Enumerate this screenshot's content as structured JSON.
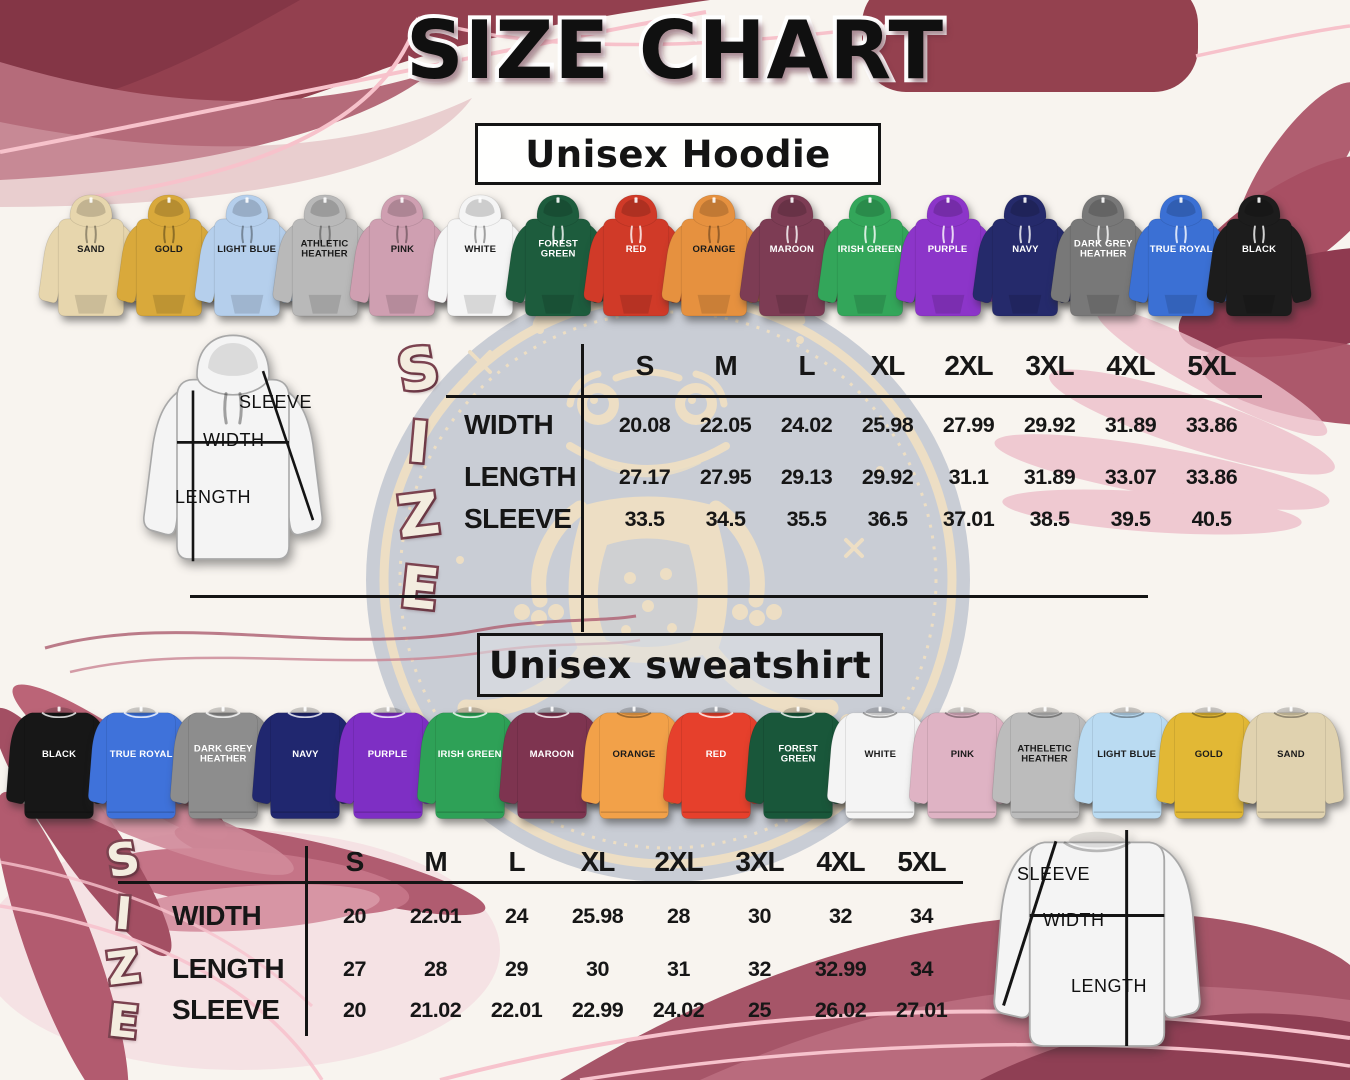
{
  "page_title": "SIZE CHART",
  "size_axis_letters": [
    "S",
    "I",
    "Z",
    "E"
  ],
  "hoodie": {
    "section_label": "Unisex Hoodie",
    "diagram": {
      "sleeve": "SLEEVE",
      "width": "WIDTH",
      "length": "LENGTH"
    },
    "colors": [
      {
        "name": "SAND",
        "hex": "#e7d6ad"
      },
      {
        "name": "GOLD",
        "hex": "#d9a93b"
      },
      {
        "name": "LIGHT BLUE",
        "hex": "#b5cfec"
      },
      {
        "name": "ATHLETIC HEATHER",
        "hex": "#b9b9b9"
      },
      {
        "name": "PINK",
        "hex": "#cf9fb1"
      },
      {
        "name": "WHITE",
        "hex": "#f5f5f5"
      },
      {
        "name": "FOREST GREEN",
        "hex": "#1d5c3d"
      },
      {
        "name": "RED",
        "hex": "#d03a28"
      },
      {
        "name": "ORANGE",
        "hex": "#e6913f"
      },
      {
        "name": "MAROON",
        "hex": "#7d3c54"
      },
      {
        "name": "IRISH GREEN",
        "hex": "#33a65a"
      },
      {
        "name": "PURPLE",
        "hex": "#8c35c9"
      },
      {
        "name": "NAVY",
        "hex": "#252a6b"
      },
      {
        "name": "DARK GREY HEATHER",
        "hex": "#787878"
      },
      {
        "name": "TRUE ROYAL",
        "hex": "#3b70d4"
      },
      {
        "name": "BLACK",
        "hex": "#1c1c1c"
      }
    ],
    "table": {
      "sizes": [
        "S",
        "M",
        "L",
        "XL",
        "2XL",
        "3XL",
        "4XL",
        "5XL"
      ],
      "rows": [
        {
          "label": "WIDTH",
          "values": [
            "20.08",
            "22.05",
            "24.02",
            "25.98",
            "27.99",
            "29.92",
            "31.89",
            "33.86"
          ]
        },
        {
          "label": "LENGTH",
          "values": [
            "27.17",
            "27.95",
            "29.13",
            "29.92",
            "31.1",
            "31.89",
            "33.07",
            "33.86"
          ]
        },
        {
          "label": "SLEEVE",
          "values": [
            "33.5",
            "34.5",
            "35.5",
            "36.5",
            "37.01",
            "38.5",
            "39.5",
            "40.5"
          ]
        }
      ]
    }
  },
  "sweatshirt": {
    "section_label": "Unisex sweatshirt",
    "diagram": {
      "sleeve": "SLEEVE",
      "width": "WIDTH",
      "length": "LENGTH"
    },
    "colors": [
      {
        "name": "BLACK",
        "hex": "#171717"
      },
      {
        "name": "TRUE ROYAL",
        "hex": "#3f72da"
      },
      {
        "name": "DARK GREY HEATHER",
        "hex": "#8d8d8d"
      },
      {
        "name": "NAVY",
        "hex": "#20276f"
      },
      {
        "name": "PURPLE",
        "hex": "#7e2fc4"
      },
      {
        "name": "IRISH GREEN",
        "hex": "#2ea157"
      },
      {
        "name": "MAROON",
        "hex": "#7e3450"
      },
      {
        "name": "ORANGE",
        "hex": "#f2a149"
      },
      {
        "name": "RED",
        "hex": "#e6402c"
      },
      {
        "name": "FOREST GREEN",
        "hex": "#19573a"
      },
      {
        "name": "WHITE",
        "hex": "#f4f4f4"
      },
      {
        "name": "PINK",
        "hex": "#dfb3c4"
      },
      {
        "name": "ATHELETIC HEATHER",
        "hex": "#bcbcbc"
      },
      {
        "name": "LIGHT BLUE",
        "hex": "#badbf2"
      },
      {
        "name": "GOLD",
        "hex": "#e2b835"
      },
      {
        "name": "SAND",
        "hex": "#e0d2af"
      }
    ],
    "table": {
      "sizes": [
        "S",
        "M",
        "L",
        "XL",
        "2XL",
        "3XL",
        "4XL",
        "5XL"
      ],
      "rows": [
        {
          "label": "WIDTH",
          "values": [
            "20",
            "22.01",
            "24",
            "25.98",
            "28",
            "30",
            "32",
            "34"
          ]
        },
        {
          "label": "LENGTH",
          "values": [
            "27",
            "28",
            "29",
            "30",
            "31",
            "32",
            "32.99",
            "34"
          ]
        },
        {
          "label": "SLEEVE",
          "values": [
            "20",
            "21.02",
            "22.01",
            "22.99",
            "24.02",
            "25",
            "26.02",
            "27.01"
          ]
        }
      ]
    }
  },
  "decor": {
    "watermark_icon": "frog-logo",
    "deep_rose": "#93404f",
    "rose": "#b56b7a",
    "blush_line": "#f7c2cb",
    "medallion_grey": "#bdc3ce",
    "frog_cream": "#ead9b8"
  }
}
